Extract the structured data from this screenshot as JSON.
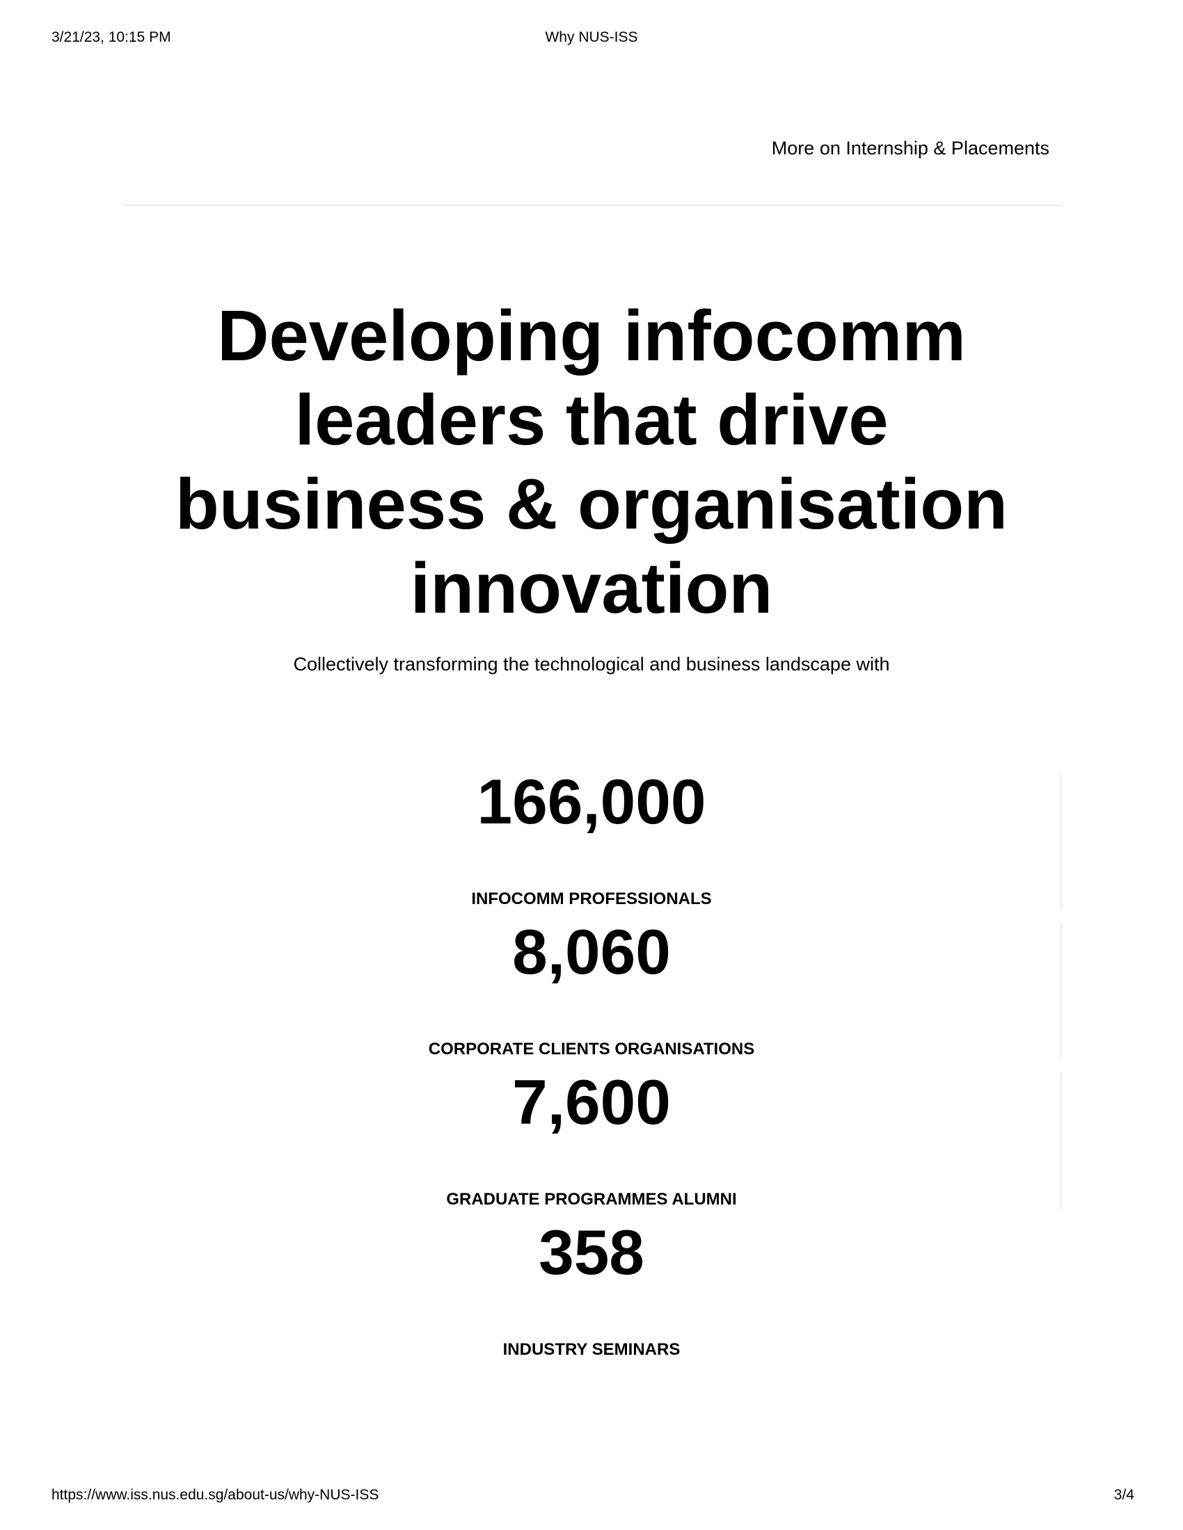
{
  "print_header": {
    "datetime": "3/21/23, 10:15 PM",
    "page_title": "Why NUS-ISS"
  },
  "links": {
    "internship_more": "More on Internship & Placements"
  },
  "hero": {
    "headline": "Developing infocomm leaders that drive business & organisation innovation",
    "subline": "Collectively transforming the technological and business landscape with"
  },
  "stats": [
    {
      "number": "166,000",
      "label": "INFOCOMM PROFESSIONALS"
    },
    {
      "number": "8,060",
      "label": "CORPORATE CLIENTS ORGANISATIONS"
    },
    {
      "number": "7,600",
      "label": "GRADUATE PROGRAMMES ALUMNI"
    },
    {
      "number": "358",
      "label": "INDUSTRY SEMINARS"
    }
  ],
  "print_footer": {
    "url": "https://www.iss.nus.edu.sg/about-us/why-NUS-ISS",
    "page_number": "3/4"
  }
}
